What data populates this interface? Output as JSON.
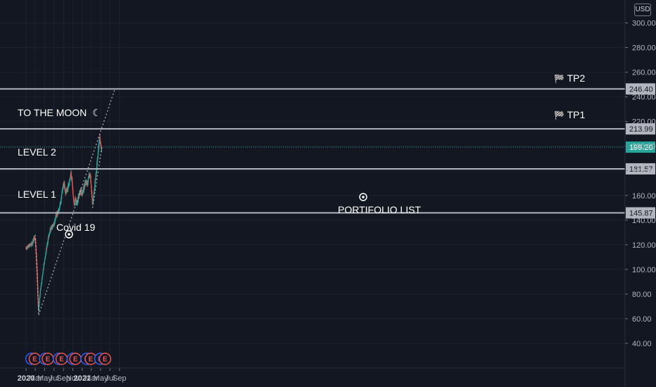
{
  "currency": "USD",
  "colors": {
    "background": "#131722",
    "grid": "#1e222d",
    "up": "#26a69a",
    "down": "#ef5350",
    "levels": "#b2b5be",
    "dividend": "#2962ff",
    "earnings": "#ef5350",
    "current_price": "#26a69a"
  },
  "annotations": {
    "to_the_moon": "TO THE MOON",
    "moon_icon": "☾",
    "level2": "LEVEL 2",
    "level1": "LEVEL 1",
    "covid": "Covid 19",
    "portfolio": "PORTIFOLIO LIST",
    "tp2": "TP2",
    "tp1": "TP1",
    "flag_icon": "🏁"
  },
  "chart_data": {
    "type": "candlestick",
    "x_axis": {
      "labels": [
        "2020",
        "Mar",
        "May",
        "Jul",
        "Sep",
        "Nov",
        "2021",
        "Mar",
        "May",
        "Jul",
        "Sep"
      ],
      "bold_labels": [
        "2020",
        "2021"
      ]
    },
    "y_axis": {
      "range": [
        20,
        310
      ],
      "ticks": [
        40,
        60,
        80,
        100,
        120,
        140,
        160,
        180,
        200,
        220,
        240,
        260,
        280,
        300
      ],
      "tick_labels": [
        "40.00",
        "60.00",
        "80.00",
        "100.00",
        "120.00",
        "140.00",
        "160.00",
        "180.00",
        "200.00",
        "220.00",
        "240.00",
        "260.00",
        "280.00",
        "300.00"
      ]
    },
    "current_price": 199.2,
    "current_price_label": "199.20",
    "horizontal_levels": [
      {
        "value": 246.4,
        "label": "246.40"
      },
      {
        "value": 213.99,
        "label": "213.99"
      },
      {
        "value": 181.57,
        "label": "181.57"
      },
      {
        "value": 145.87,
        "label": "145.87"
      }
    ],
    "price_path": [
      [
        "2020-01-01",
        117
      ],
      [
        "2020-01-20",
        119
      ],
      [
        "2020-02-10",
        121
      ],
      [
        "2020-02-24",
        126
      ],
      [
        "2020-03-01",
        124
      ],
      [
        "2020-03-08",
        112
      ],
      [
        "2020-03-15",
        92
      ],
      [
        "2020-03-20",
        72
      ],
      [
        "2020-03-23",
        65
      ],
      [
        "2020-03-28",
        75
      ],
      [
        "2020-04-05",
        84
      ],
      [
        "2020-04-15",
        93
      ],
      [
        "2020-04-25",
        103
      ],
      [
        "2020-05-05",
        110
      ],
      [
        "2020-05-15",
        118
      ],
      [
        "2020-06-01",
        130
      ],
      [
        "2020-06-15",
        134
      ],
      [
        "2020-06-30",
        136
      ],
      [
        "2020-07-15",
        144
      ],
      [
        "2020-07-31",
        147
      ],
      [
        "2020-08-15",
        155
      ],
      [
        "2020-08-25",
        165
      ],
      [
        "2020-09-05",
        170
      ],
      [
        "2020-09-15",
        162
      ],
      [
        "2020-09-25",
        164
      ],
      [
        "2020-10-05",
        169
      ],
      [
        "2020-10-15",
        175
      ],
      [
        "2020-10-20",
        179
      ],
      [
        "2020-10-28",
        170
      ],
      [
        "2020-11-02",
        161
      ],
      [
        "2020-11-10",
        152
      ],
      [
        "2020-11-18",
        157
      ],
      [
        "2020-11-28",
        153
      ],
      [
        "2020-12-10",
        160
      ],
      [
        "2020-12-20",
        164
      ],
      [
        "2020-12-31",
        162
      ],
      [
        "2021-01-10",
        165
      ],
      [
        "2021-01-25",
        171
      ],
      [
        "2021-02-05",
        169
      ],
      [
        "2021-02-15",
        178
      ],
      [
        "2021-02-25",
        174
      ],
      [
        "2021-03-03",
        163
      ],
      [
        "2021-03-10",
        152
      ],
      [
        "2021-03-18",
        162
      ],
      [
        "2021-03-28",
        173
      ],
      [
        "2021-04-05",
        182
      ],
      [
        "2021-04-15",
        196
      ],
      [
        "2021-04-25",
        207
      ],
      [
        "2021-04-30",
        202
      ],
      [
        "2021-05-08",
        198
      ]
    ],
    "trendlines": [
      {
        "from": [
          "2020-03-23",
          63
        ],
        "to": [
          "2021-08-01",
          246
        ]
      },
      {
        "from": [
          "2020-03-02",
          128
        ],
        "to": [
          "2020-03-23",
          63
        ]
      },
      {
        "from": [
          "2021-03-10",
          150
        ],
        "to": [
          "2021-05-10",
          200
        ]
      }
    ],
    "events": [
      {
        "type": "D",
        "date": "2020-02-05"
      },
      {
        "type": "E",
        "date": "2020-02-27"
      },
      {
        "type": "D",
        "date": "2020-05-05"
      },
      {
        "type": "E",
        "date": "2020-05-22"
      },
      {
        "type": "D",
        "date": "2020-08-03"
      },
      {
        "type": "E",
        "date": "2020-08-20"
      },
      {
        "type": "D",
        "date": "2020-11-01"
      },
      {
        "type": "E",
        "date": "2020-11-18"
      },
      {
        "type": "D",
        "date": "2021-01-30"
      },
      {
        "type": "E",
        "date": "2021-02-26"
      },
      {
        "type": "D",
        "date": "2021-04-29"
      },
      {
        "type": "E",
        "date": "2021-05-30"
      }
    ],
    "grid": true,
    "legend": "none"
  }
}
